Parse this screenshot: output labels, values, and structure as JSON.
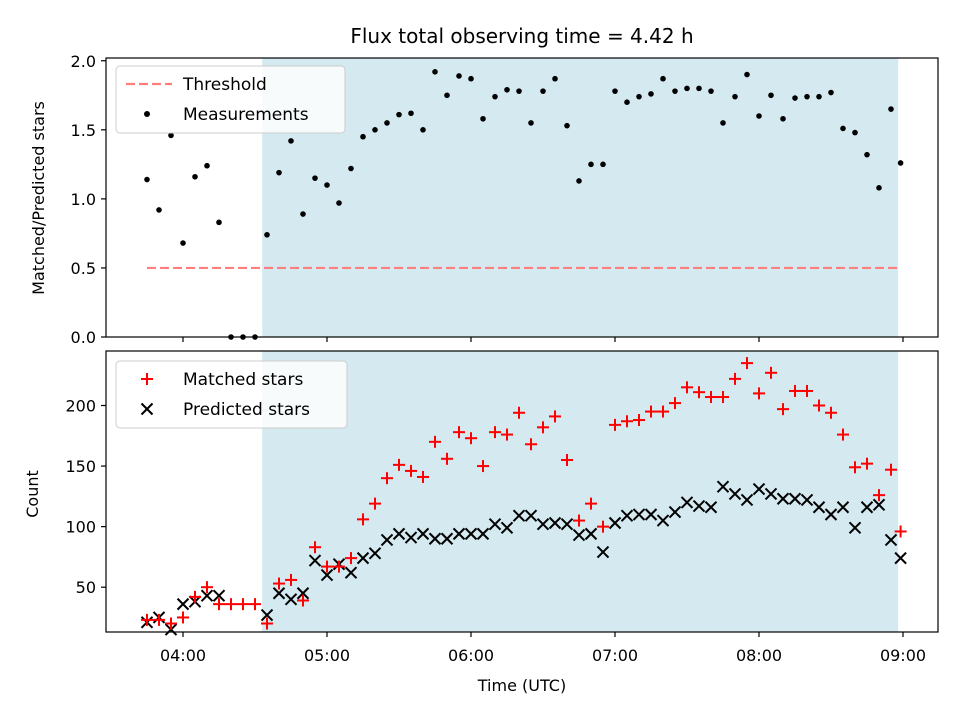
{
  "chart_data": [
    {
      "type": "scatter",
      "title": "Flux total observing time = 4.42 h",
      "xlabel": "",
      "ylabel": "Matched/Predicted stars",
      "ylim": [
        0,
        2.02
      ],
      "yticks": [
        "0.0",
        "0.5",
        "1.0",
        "1.5",
        "2.0"
      ],
      "legend": {
        "placement": "top-left",
        "entries": [
          "Threshold",
          "Measurements"
        ]
      },
      "shaded_span": [
        "04:33",
        "08:58"
      ],
      "shade_color": "#d4eaf0",
      "threshold": {
        "name": "Threshold",
        "value": 0.5,
        "x_range": [
          "03:45",
          "08:59"
        ],
        "color": "#ff7f7f"
      },
      "series": [
        {
          "name": "Measurements",
          "color": "#000000",
          "x": [
            "03:45",
            "03:50",
            "03:55",
            "04:00",
            "04:05",
            "04:10",
            "04:15",
            "04:20",
            "04:25",
            "04:30",
            "04:35",
            "04:40",
            "04:45",
            "04:50",
            "04:55",
            "05:00",
            "05:05",
            "05:10",
            "05:15",
            "05:20",
            "05:25",
            "05:30",
            "05:35",
            "05:40",
            "05:45",
            "05:50",
            "05:55",
            "06:00",
            "06:05",
            "06:10",
            "06:15",
            "06:20",
            "06:25",
            "06:30",
            "06:35",
            "06:40",
            "06:45",
            "06:50",
            "06:55",
            "07:00",
            "07:05",
            "07:10",
            "07:15",
            "07:20",
            "07:25",
            "07:30",
            "07:35",
            "07:40",
            "07:45",
            "07:50",
            "07:55",
            "08:00",
            "08:05",
            "08:10",
            "08:15",
            "08:20",
            "08:25",
            "08:30",
            "08:35",
            "08:40",
            "08:45",
            "08:50",
            "08:55",
            "08:59"
          ],
          "y": [
            1.14,
            0.92,
            1.46,
            0.68,
            1.16,
            1.24,
            0.83,
            0.0,
            0.0,
            0.0,
            0.74,
            1.19,
            1.42,
            0.89,
            1.15,
            1.1,
            0.97,
            1.22,
            1.45,
            1.5,
            1.55,
            1.61,
            1.62,
            1.5,
            1.92,
            1.75,
            1.89,
            1.87,
            1.58,
            1.74,
            1.79,
            1.78,
            1.55,
            1.78,
            1.87,
            1.53,
            1.13,
            1.25,
            1.25,
            1.78,
            1.7,
            1.74,
            1.76,
            1.87,
            1.78,
            1.8,
            1.8,
            1.78,
            1.55,
            1.74,
            1.9,
            1.6,
            1.75,
            1.58,
            1.73,
            1.74,
            1.74,
            1.77,
            1.51,
            1.48,
            1.32,
            1.08,
            1.65,
            1.26
          ]
        }
      ]
    },
    {
      "type": "scatter",
      "title": "",
      "xlabel": "Time (UTC)",
      "ylabel": "Count",
      "ylim": [
        13,
        245
      ],
      "yticks": [
        "50",
        "100",
        "150",
        "200"
      ],
      "xticks": [
        "04:00",
        "05:00",
        "06:00",
        "07:00",
        "08:00",
        "09:00"
      ],
      "legend": {
        "placement": "top-left",
        "entries": [
          "Matched stars",
          "Predicted stars"
        ]
      },
      "shaded_span": [
        "04:33",
        "08:58"
      ],
      "shade_color": "#d4eaf0",
      "x": [
        "03:45",
        "03:50",
        "03:55",
        "04:00",
        "04:05",
        "04:10",
        "04:15",
        "04:20",
        "04:25",
        "04:30",
        "04:35",
        "04:40",
        "04:45",
        "04:50",
        "04:55",
        "05:00",
        "05:05",
        "05:10",
        "05:15",
        "05:20",
        "05:25",
        "05:30",
        "05:35",
        "05:40",
        "05:45",
        "05:50",
        "05:55",
        "06:00",
        "06:05",
        "06:10",
        "06:15",
        "06:20",
        "06:25",
        "06:30",
        "06:35",
        "06:40",
        "06:45",
        "06:50",
        "06:55",
        "07:00",
        "07:05",
        "07:10",
        "07:15",
        "07:20",
        "07:25",
        "07:30",
        "07:35",
        "07:40",
        "07:45",
        "07:50",
        "07:55",
        "08:00",
        "08:05",
        "08:10",
        "08:15",
        "08:20",
        "08:25",
        "08:30",
        "08:35",
        "08:40",
        "08:45",
        "08:50",
        "08:55",
        "08:59"
      ],
      "series": [
        {
          "name": "Matched stars",
          "marker": "plus",
          "color": "#ff0000",
          "values": [
            23,
            23,
            20,
            25,
            42,
            50,
            36,
            36,
            36,
            36,
            20,
            53,
            56,
            39,
            83,
            67,
            67,
            74,
            106,
            119,
            140,
            151,
            146,
            141,
            170,
            156,
            178,
            173,
            150,
            178,
            176,
            194,
            168,
            182,
            191,
            155,
            105,
            119,
            100,
            184,
            187,
            188,
            195,
            195,
            202,
            215,
            211,
            207,
            207,
            222,
            235,
            210,
            227,
            197,
            212,
            212,
            200,
            194,
            176,
            149,
            152,
            126,
            147,
            96
          ]
        },
        {
          "name": "Predicted stars",
          "marker": "x",
          "color": "#000000",
          "values": [
            21,
            25,
            15,
            36,
            38,
            43,
            43,
            null,
            null,
            null,
            27,
            45,
            40,
            45,
            72,
            60,
            69,
            62,
            74,
            78,
            89,
            94,
            91,
            94,
            90,
            90,
            94,
            94,
            94,
            102,
            99,
            109,
            109,
            102,
            103,
            102,
            93,
            94,
            79,
            103,
            109,
            110,
            110,
            105,
            112,
            120,
            117,
            116,
            133,
            127,
            122,
            131,
            127,
            123,
            123,
            122,
            116,
            110,
            116,
            99,
            116,
            118,
            89,
            74
          ]
        }
      ]
    }
  ]
}
